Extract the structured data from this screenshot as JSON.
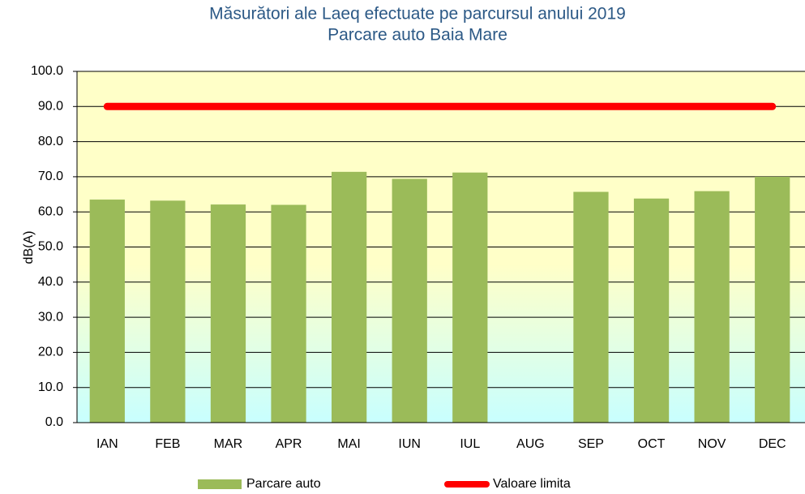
{
  "chart_data": {
    "type": "bar",
    "title": "Măsurători ale Laeq efectuate pe parcursul anului 2019",
    "subtitle": "Parcare auto Baia Mare",
    "y_label": "dB(A)",
    "categories": [
      "IAN",
      "FEB",
      "MAR",
      "APR",
      "MAI",
      "IUN",
      "IUL",
      "AUG",
      "SEP",
      "OCT",
      "NOV",
      "DEC"
    ],
    "series": [
      {
        "name": "Parcare auto",
        "type": "bar",
        "color": "#9bbb59",
        "values": [
          63.5,
          63.2,
          62.1,
          62.0,
          71.4,
          69.4,
          71.2,
          null,
          65.7,
          63.8,
          65.9,
          70.0
        ]
      },
      {
        "name": "Valoare limita",
        "type": "line",
        "color": "#ff0000",
        "values": [
          90,
          90,
          90,
          90,
          90,
          90,
          90,
          90,
          90,
          90,
          90,
          90
        ]
      }
    ],
    "ylim": [
      0,
      100
    ],
    "yticks": [
      {
        "value": 0,
        "label": "0.0"
      },
      {
        "value": 10,
        "label": "10.0"
      },
      {
        "value": 20,
        "label": "20.0"
      },
      {
        "value": 30,
        "label": "30.0"
      },
      {
        "value": 40,
        "label": "40.0"
      },
      {
        "value": 50,
        "label": "50.0"
      },
      {
        "value": 60,
        "label": "60.0"
      },
      {
        "value": 70,
        "label": "70.0"
      },
      {
        "value": 80,
        "label": "80.0"
      },
      {
        "value": 90,
        "label": "90.0"
      },
      {
        "value": 100,
        "label": "100.0"
      }
    ],
    "grid": true,
    "legend": "bottom"
  }
}
